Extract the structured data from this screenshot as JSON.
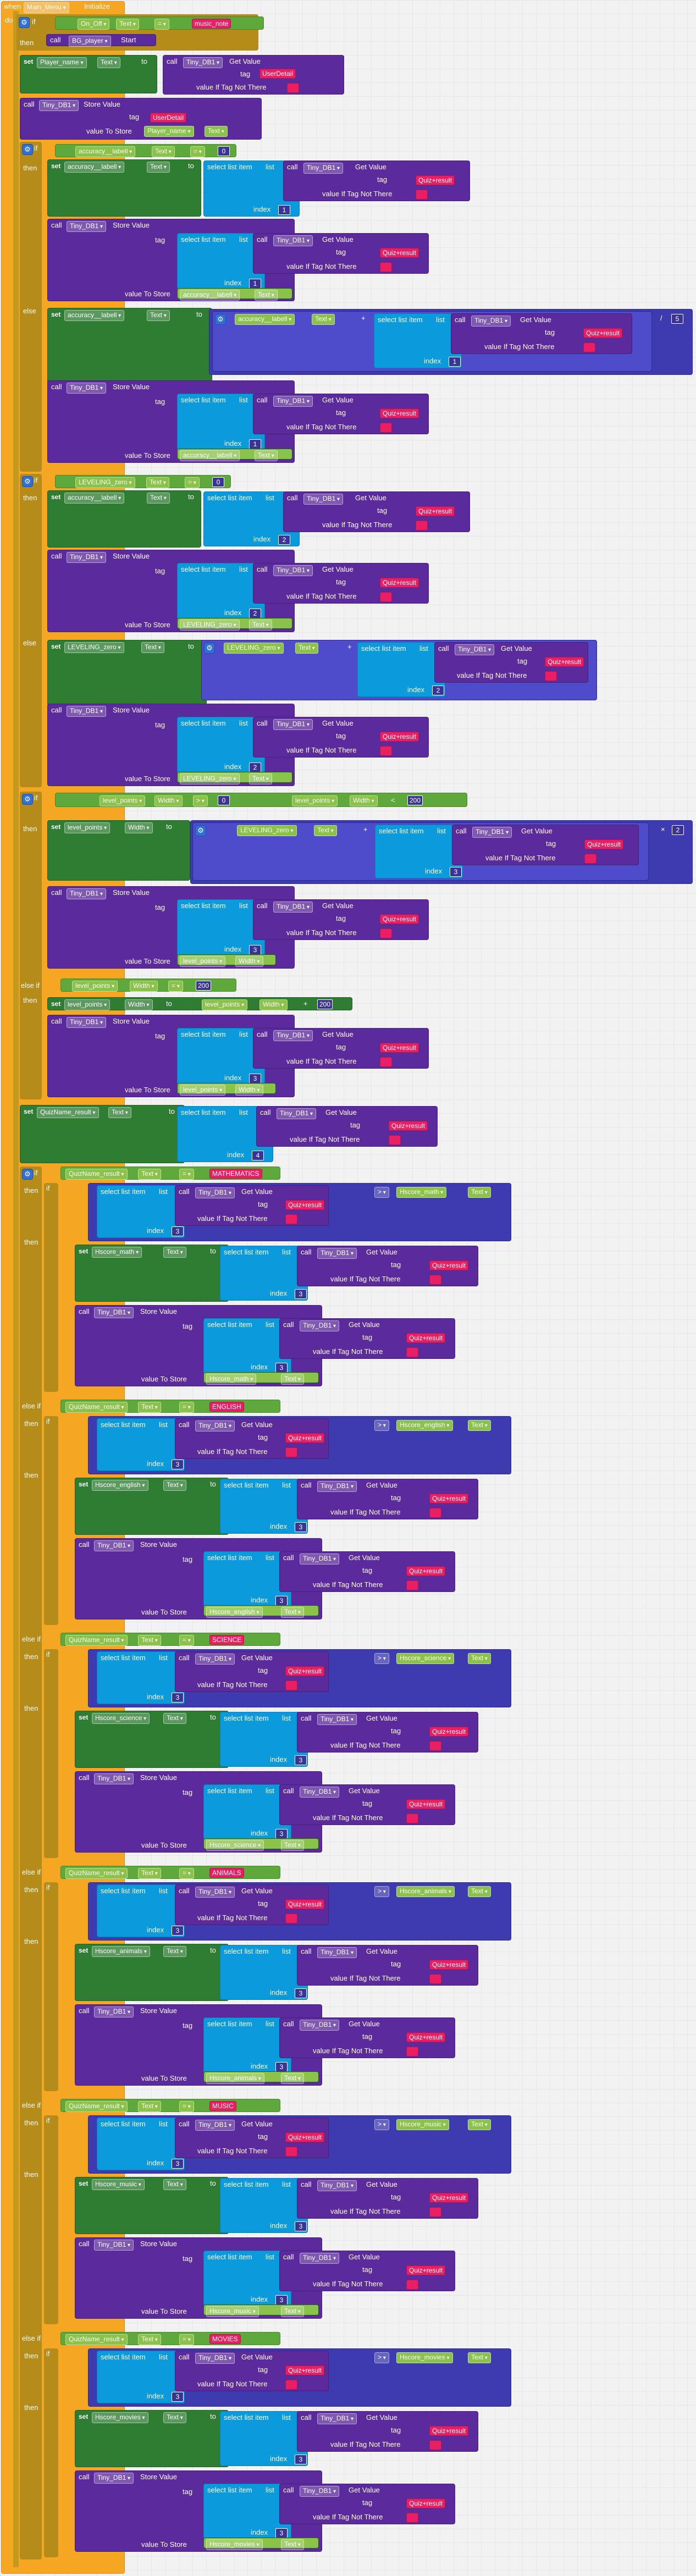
{
  "event": {
    "when": "when",
    "component": "Main_Menu",
    "event_name": "Initialize",
    "do": "do"
  },
  "keywords": {
    "if": "if",
    "then": "then",
    "else": "else",
    "else_if": "else if",
    "set": "set",
    "to": "to",
    "call": "call",
    "get_value": "Get Value",
    "store_value": "Store Value",
    "tag": "tag",
    "value_if_not_there": "value If Tag Not There",
    "value_to_store": "value To Store",
    "select_list_item": "select list item",
    "list": "list",
    "index": "index",
    "start": "Start",
    "eq": "=",
    "gt": ">",
    "plus": "+",
    "times": "×",
    "div": "/"
  },
  "components": {
    "on_off": "On_Off",
    "text": "Text",
    "sound_player": "BG_player",
    "tinydb": "Tiny_DB1",
    "player_name": "Player_name",
    "accuracy_label": "accuracy__labell",
    "leveling_zero": "LEVELING_zero",
    "level_points": "level_points",
    "width": "Width",
    "quizname_result": "QuizName_result",
    "hscore_math": "Hscore_math",
    "hscore_english": "Hscore_english",
    "hscore_science": "Hscore_science",
    "hscore_animals": "Hscore_animals",
    "hscore_music": "Hscore_music",
    "hscore_movies": "Hscore_movies"
  },
  "strings": {
    "music_note": "music_note",
    "user_detail": "UserDetail",
    "quiz_result": "Quiz+result",
    "mathematics": "MATHEMATICS",
    "english": "ENGLISH",
    "science": "SCIENCE",
    "animals": "ANIMALS",
    "music": "MUSIC",
    "movies": "MOVIES",
    "empty": ""
  },
  "numbers": {
    "zero": "0",
    "one": "1",
    "two": "2",
    "three": "3",
    "four": "4",
    "five": "5",
    "two_hundred": "200"
  }
}
